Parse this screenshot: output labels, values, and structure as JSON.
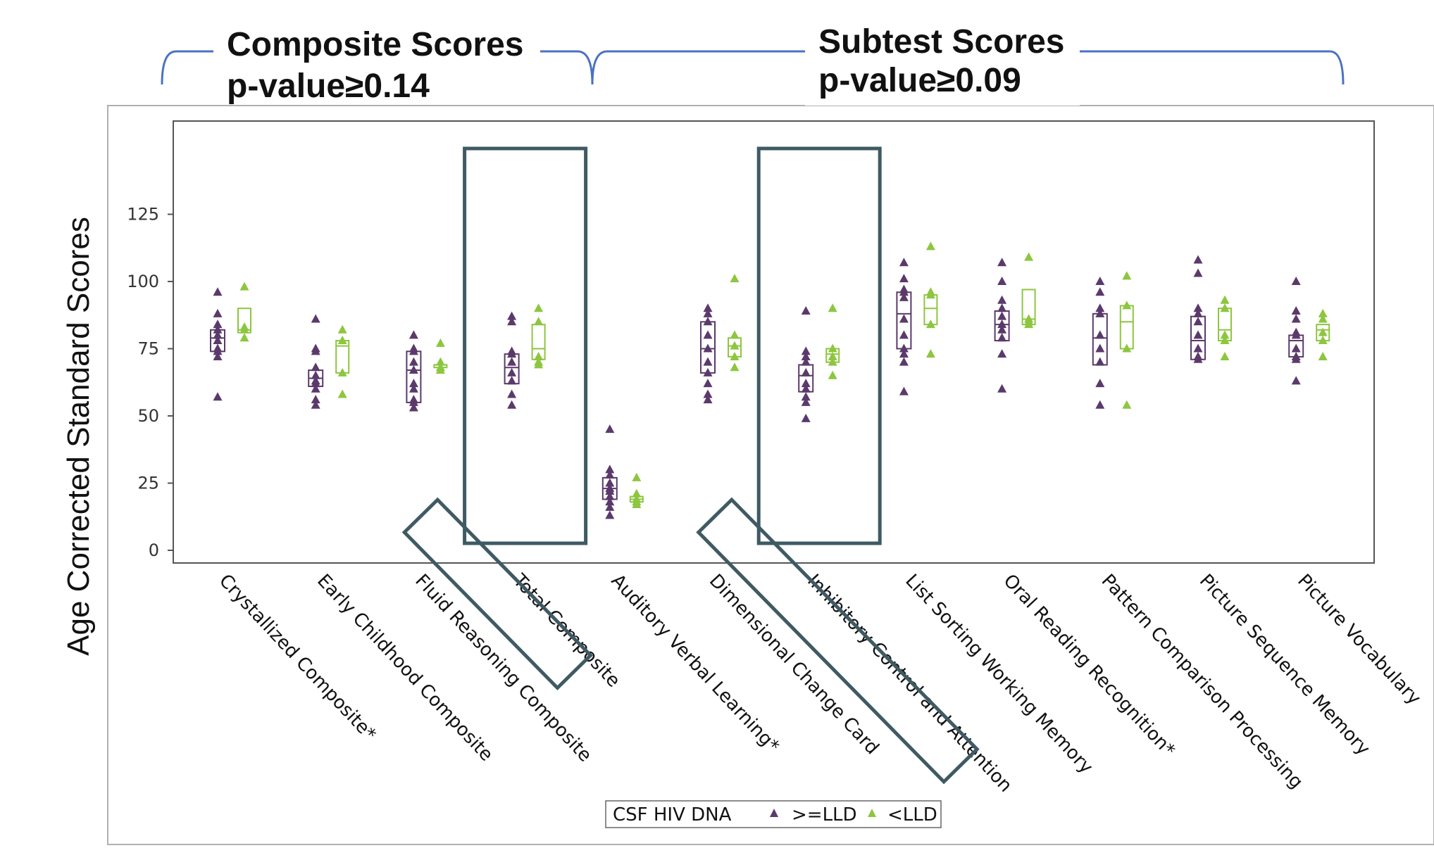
{
  "chart_data": {
    "type": "box",
    "ylabel": "Age Corrected Standard Scores",
    "ylim": [
      0,
      125
    ],
    "yticks": [
      "0",
      "25",
      "50",
      "75",
      "100",
      "125"
    ],
    "groups": [
      {
        "label": "Composite Scores",
        "sublabel": "p-value≥0.14"
      },
      {
        "label": "Subtest Scores",
        "sublabel": "p-value≥0.09"
      }
    ],
    "legend": {
      "title": "CSF HIV DNA",
      "entries": [
        ">=LLD",
        "<LLD"
      ]
    },
    "colors": {
      ">=LLD": "#5b3a6b",
      "<LLD": "#8dc63f",
      "highlight": "#3f5a63"
    },
    "highlighted": [
      "Total Composite",
      "Inhibitory Control and Attention"
    ],
    "categories": [
      "Crystallized Composite*",
      "Early Childhood Composite",
      "Fluid Reasoning Composite",
      "Total Composite",
      "Auditory Verbal Learning*",
      "Dimensional Change Card",
      "Inhibitory Control and Attention",
      "List Sorting Working Memory",
      "Oral Reading Recognition*",
      "Pattern Comparison Processing",
      "Picture Sequence Memory",
      "Picture Vocabulary"
    ],
    "series": [
      {
        "name": ">=LLD",
        "boxes": [
          [
            74,
            77,
            79,
            82
          ],
          [
            61,
            62,
            64,
            67
          ],
          [
            55,
            60,
            67,
            74
          ],
          [
            62,
            65,
            68,
            73
          ],
          [
            19,
            21,
            23,
            27
          ],
          [
            66,
            70,
            75,
            85
          ],
          [
            59,
            62,
            65,
            69
          ],
          [
            75,
            78,
            88,
            96
          ],
          [
            78,
            80,
            84,
            89
          ],
          [
            69,
            74,
            79,
            88
          ],
          [
            71,
            74,
            78,
            87
          ],
          [
            72,
            75,
            78,
            80
          ]
        ],
        "points": [
          [
            96,
            88,
            84,
            82,
            80,
            78,
            75,
            74,
            72,
            57
          ],
          [
            86,
            75,
            74,
            68,
            65,
            63,
            62,
            60,
            56,
            54
          ],
          [
            80,
            75,
            74,
            70,
            67,
            62,
            60,
            56,
            55,
            53
          ],
          [
            87,
            85,
            74,
            73,
            70,
            66,
            63,
            58,
            54
          ],
          [
            45,
            30,
            28,
            25,
            23,
            22,
            20,
            18,
            16,
            13
          ],
          [
            90,
            88,
            85,
            80,
            75,
            70,
            66,
            62,
            58,
            56
          ],
          [
            89,
            74,
            72,
            70,
            66,
            62,
            60,
            57,
            55,
            49
          ],
          [
            107,
            101,
            97,
            96,
            94,
            86,
            80,
            75,
            73,
            70,
            59
          ],
          [
            107,
            100,
            93,
            90,
            87,
            84,
            82,
            79,
            73,
            60
          ],
          [
            100,
            96,
            90,
            88,
            80,
            75,
            70,
            62,
            54
          ],
          [
            108,
            103,
            90,
            88,
            85,
            80,
            75,
            72,
            71
          ],
          [
            100,
            89,
            86,
            81,
            80,
            75,
            72,
            71,
            63
          ]
        ]
      },
      {
        "name": "<LLD",
        "boxes": [
          [
            81,
            82,
            82,
            90
          ],
          [
            66,
            72,
            76,
            78
          ],
          [
            68,
            68,
            69,
            69
          ],
          [
            71,
            72,
            75,
            84
          ],
          [
            18,
            19,
            19,
            20
          ],
          [
            72,
            74,
            76,
            79
          ],
          [
            70,
            71,
            73,
            75
          ],
          [
            84,
            86,
            90,
            95
          ],
          [
            84,
            85,
            86,
            97
          ],
          [
            75,
            80,
            85,
            91
          ],
          [
            78,
            80,
            82,
            90
          ],
          [
            78,
            80,
            82,
            84
          ]
        ],
        "points": [
          [
            98,
            83,
            82,
            79
          ],
          [
            82,
            78,
            66,
            58
          ],
          [
            77,
            70,
            68,
            67
          ],
          [
            90,
            85,
            72,
            70,
            69
          ],
          [
            27,
            21,
            19,
            18,
            17
          ],
          [
            101,
            80,
            76,
            72,
            68
          ],
          [
            90,
            75,
            72,
            70,
            65
          ],
          [
            113,
            96,
            95,
            84,
            73
          ],
          [
            109,
            86,
            85,
            84
          ],
          [
            102,
            91,
            75,
            54
          ],
          [
            93,
            90,
            80,
            78,
            72
          ],
          [
            88,
            86,
            81,
            78,
            72
          ]
        ]
      }
    ]
  }
}
